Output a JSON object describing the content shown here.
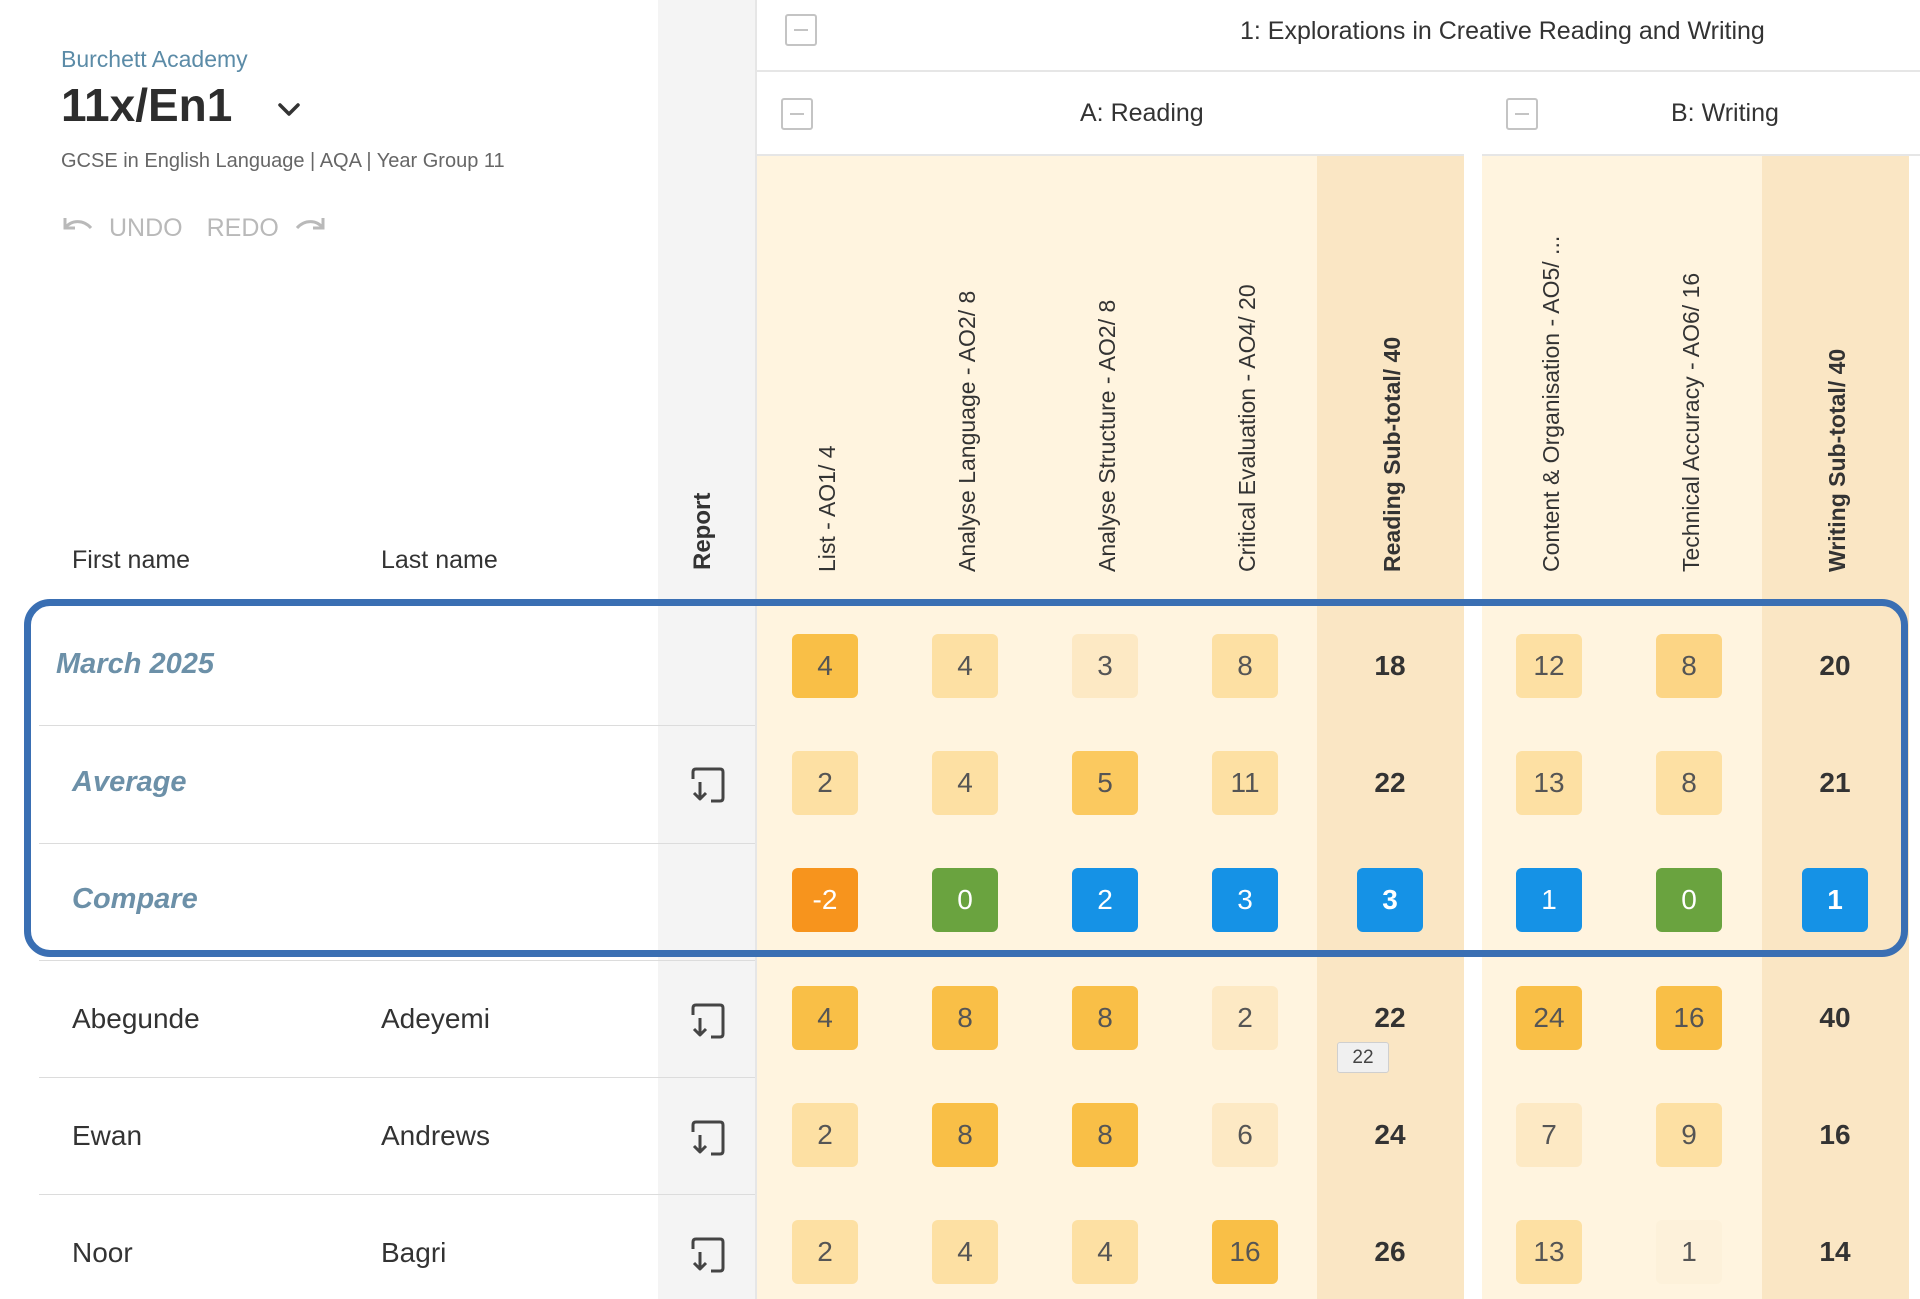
{
  "header": {
    "school": "Burchett Academy",
    "class_name": "11x/En1",
    "subtitle": "GCSE in English Language | AQA | Year Group 11",
    "undo_label": "UNDO",
    "redo_label": "REDO"
  },
  "columns": {
    "first_name": "First name",
    "last_name": "Last name",
    "report": "Report"
  },
  "paper": {
    "title": "1: Explorations in Creative Reading and Writing",
    "sections": [
      {
        "title": "A: Reading"
      },
      {
        "title": "B: Writing"
      }
    ]
  },
  "mark_columns": [
    {
      "label": "List - AO1/ 4",
      "type": "question"
    },
    {
      "label": "Analyse Language - AO2/ 8",
      "type": "question"
    },
    {
      "label": "Analyse Structure - AO2/ 8",
      "type": "question"
    },
    {
      "label": "Critical Evaluation - AO4/ 20",
      "type": "question"
    },
    {
      "label": "Reading Sub-total/ 40",
      "type": "subtotal"
    },
    {
      "label": "Content & Organisation - AO5/ ...",
      "type": "question"
    },
    {
      "label": "Technical Accuracy - AO6/ 16",
      "type": "question"
    },
    {
      "label": "Writing Sub-total/ 40",
      "type": "subtotal"
    }
  ],
  "summary_rows": [
    {
      "label": "March 2025",
      "values": [
        "4",
        "4",
        "3",
        "8",
        "18",
        "12",
        "8",
        "20"
      ],
      "colors": [
        "#f9bf47",
        "#fde0a3",
        "#fde9c4",
        "#fde0a3",
        "",
        "#fde0a3",
        "#fcd585",
        ""
      ]
    },
    {
      "label": "Average",
      "values": [
        "2",
        "4",
        "5",
        "11",
        "22",
        "13",
        "8",
        "21"
      ],
      "colors": [
        "#fde0a3",
        "#fde0a3",
        "#fbc95f",
        "#fde0a3",
        "",
        "#fde0a3",
        "#fde0a3",
        ""
      ]
    },
    {
      "label": "Compare",
      "values": [
        "-2",
        "0",
        "2",
        "3",
        "3",
        "1",
        "0",
        "1"
      ],
      "colors": [
        "#f7941d",
        "#6aa33f",
        "#1592e6",
        "#1592e6",
        "#1592e6",
        "#1592e6",
        "#6aa33f",
        "#1592e6"
      ]
    }
  ],
  "students": [
    {
      "first": "Abegunde",
      "last": "Adeyemi",
      "values": [
        "4",
        "8",
        "8",
        "2",
        "22",
        "24",
        "16",
        "40"
      ],
      "colors": [
        "#f9bf47",
        "#f9bf47",
        "#f9bf47",
        "#fde9c4",
        "",
        "#f9bf47",
        "#f9bf47",
        ""
      ]
    },
    {
      "first": "Ewan",
      "last": "Andrews",
      "values": [
        "2",
        "8",
        "8",
        "6",
        "24",
        "7",
        "9",
        "16"
      ],
      "colors": [
        "#fde0a3",
        "#f9bf47",
        "#f9bf47",
        "#fde9c4",
        "",
        "#fde9c4",
        "#fde0a3",
        ""
      ]
    },
    {
      "first": "Noor",
      "last": "Bagri",
      "values": [
        "2",
        "4",
        "4",
        "16",
        "26",
        "13",
        "1",
        "14"
      ],
      "colors": [
        "#fde0a3",
        "#fde0a3",
        "#fde0a3",
        "#f9bf47",
        "",
        "#fde0a3",
        "#fdf1da",
        ""
      ]
    }
  ],
  "tooltip": "22",
  "colors": {
    "question_bg": "#fff4df",
    "subtotal_bg": "#fae6c4",
    "highlight_border": "#3a6fb3",
    "label_blue": "#6c90a8"
  },
  "icons": [
    "chevron-down-icon",
    "undo-icon",
    "redo-icon",
    "report-icon",
    "collapse-icon"
  ]
}
